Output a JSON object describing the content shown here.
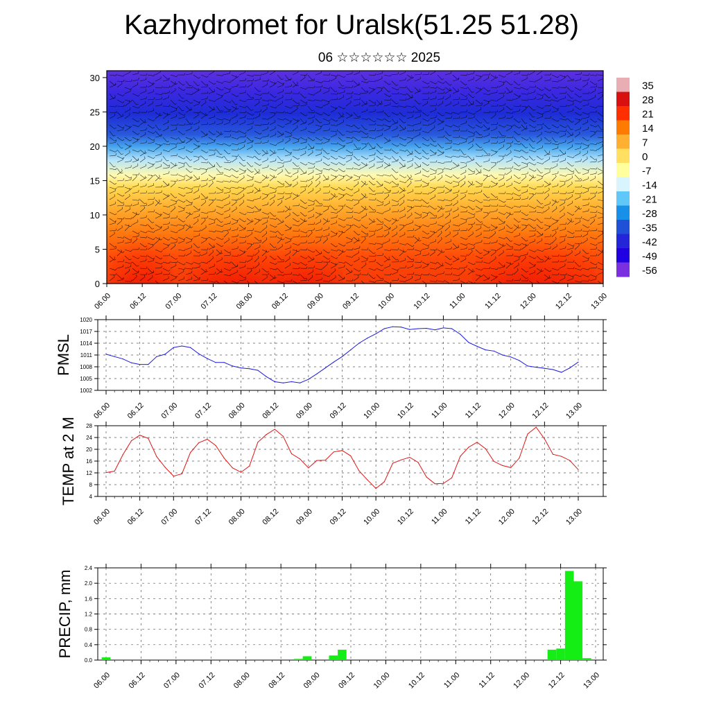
{
  "page": {
    "title": "Kazhydromet for Uralsk(51.25 51.28)",
    "subtitle": "06 ☆☆☆☆☆☆ 2025"
  },
  "colors": {
    "pmsl_line": "#1a1adf",
    "temp_line": "#e01414",
    "precip_bar": "#14ee14",
    "colorbar": [
      "#e9aeb3",
      "#d81010",
      "#ff3000",
      "#ff7a00",
      "#ffb030",
      "#ffe060",
      "#ffff9e",
      "#d8f4ff",
      "#60c8f8",
      "#1890e8",
      "#2050d8",
      "#2424d8",
      "#2000e0",
      "#7a30e0"
    ]
  },
  "chart_data": [
    {
      "id": "cross-section",
      "type": "heatmap",
      "title": "",
      "ylabel": "",
      "ylim": [
        0,
        31
      ],
      "y_ticks": [
        "0",
        "5",
        "10",
        "15",
        "20",
        "25",
        "30"
      ],
      "x_ticks": [
        "06.00",
        "06.12",
        "07.00",
        "07.12",
        "08.00",
        "08.12",
        "09.00",
        "09.12",
        "10.00",
        "10.12",
        "11.00",
        "11.12",
        "12.00",
        "12.12",
        "13.00"
      ],
      "colorbar_labels": [
        "35",
        "28",
        "21",
        "14",
        "7",
        "0",
        "-7",
        "-14",
        "-21",
        "-28",
        "-35",
        "-42",
        "-49",
        "-56"
      ],
      "overlay": "wind barbs"
    },
    {
      "id": "pmsl",
      "type": "line",
      "ylabel": "PMSL",
      "ylim": [
        1002,
        1020
      ],
      "y_ticks": [
        "1002",
        "1005",
        "1008",
        "1011",
        "1014",
        "1017",
        "1020"
      ],
      "x_ticks": [
        "06.00",
        "06.12",
        "07.00",
        "07.12",
        "08.00",
        "08.12",
        "09.00",
        "09.12",
        "10.00",
        "10.12",
        "11.00",
        "11.12",
        "12.00",
        "12.12",
        "13.00"
      ],
      "x": [
        0,
        3,
        6,
        9,
        12,
        15,
        18,
        21,
        24,
        27,
        30,
        33,
        36,
        39,
        42,
        45,
        48,
        51,
        54,
        57,
        60,
        63,
        66,
        69,
        72,
        75,
        78,
        81,
        84,
        87,
        90,
        93,
        96,
        99,
        102,
        105,
        108,
        111,
        114,
        117,
        120,
        123,
        126,
        129,
        132,
        135,
        138,
        141,
        144,
        147,
        150,
        153,
        156,
        159,
        162,
        165,
        168
      ],
      "values": [
        1011.2,
        1010.6,
        1010.0,
        1009.0,
        1008.6,
        1008.6,
        1010.6,
        1011.2,
        1012.9,
        1013.3,
        1012.9,
        1011.3,
        1010.1,
        1009.1,
        1009.1,
        1008.2,
        1007.7,
        1007.5,
        1007.1,
        1005.5,
        1004.2,
        1003.9,
        1004.2,
        1003.9,
        1004.8,
        1006.2,
        1007.7,
        1009.2,
        1010.6,
        1012.3,
        1014.0,
        1015.3,
        1016.4,
        1017.7,
        1018.2,
        1018.1,
        1017.5,
        1017.7,
        1017.8,
        1017.4,
        1017.9,
        1017.7,
        1016.3,
        1014.2,
        1013.2,
        1012.3,
        1012.0,
        1011.0,
        1010.5,
        1009.6,
        1008.2,
        1007.9,
        1007.6,
        1007.3,
        1006.6,
        1007.7,
        1009.2
      ]
    },
    {
      "id": "temp2m",
      "type": "line",
      "ylabel": "TEMP at 2 M",
      "ylim": [
        4,
        28
      ],
      "y_ticks": [
        "4",
        "8",
        "12",
        "16",
        "20",
        "24",
        "28"
      ],
      "x_ticks": [
        "06.00",
        "06.12",
        "07.00",
        "07.12",
        "08.00",
        "08.12",
        "09.00",
        "09.12",
        "10.00",
        "10.12",
        "11.00",
        "11.12",
        "12.00",
        "12.12",
        "13.00"
      ],
      "x": [
        0,
        3,
        6,
        9,
        12,
        15,
        18,
        21,
        24,
        27,
        30,
        33,
        36,
        39,
        42,
        45,
        48,
        51,
        54,
        57,
        60,
        63,
        66,
        69,
        72,
        75,
        78,
        81,
        84,
        87,
        90,
        93,
        96,
        99,
        102,
        105,
        108,
        111,
        114,
        117,
        120,
        123,
        126,
        129,
        132,
        135,
        138,
        141,
        144,
        147,
        150,
        153,
        156,
        159,
        162,
        165,
        168
      ],
      "values": [
        12.1,
        12.6,
        18.2,
        22.9,
        24.8,
        23.7,
        17.5,
        13.9,
        10.9,
        11.7,
        18.9,
        22.2,
        23.4,
        21.3,
        17.0,
        13.7,
        12.2,
        14.3,
        22.4,
        25.0,
        26.8,
        24.4,
        18.5,
        16.7,
        13.7,
        16.2,
        16.3,
        19.1,
        19.6,
        17.8,
        12.7,
        9.6,
        6.7,
        9.0,
        15.3,
        16.4,
        17.3,
        15.6,
        10.6,
        8.3,
        8.4,
        10.3,
        17.6,
        20.7,
        22.4,
        20.2,
        15.9,
        14.5,
        13.8,
        17.0,
        25.2,
        27.5,
        23.5,
        18.3,
        17.6,
        16.2,
        13.1
      ]
    },
    {
      "id": "precip",
      "type": "bar",
      "ylabel": "PRECIP, mm",
      "ylim": [
        0,
        2.4
      ],
      "y_ticks": [
        "0.0",
        "0.4",
        "0.8",
        "1.2",
        "1.6",
        "2.0",
        "2.4"
      ],
      "x_ticks": [
        "06.00",
        "06.12",
        "07.00",
        "07.12",
        "08.00",
        "08.12",
        "09.00",
        "09.12",
        "10.00",
        "10.12",
        "11.00",
        "11.12",
        "12.00",
        "12.12",
        "13.00"
      ],
      "x": [
        0,
        66,
        69,
        78,
        81,
        153,
        156,
        159,
        162,
        165
      ],
      "values": [
        0.07,
        0.03,
        0.1,
        0.12,
        0.27,
        0.27,
        0.3,
        2.32,
        2.05,
        0.05
      ]
    }
  ]
}
